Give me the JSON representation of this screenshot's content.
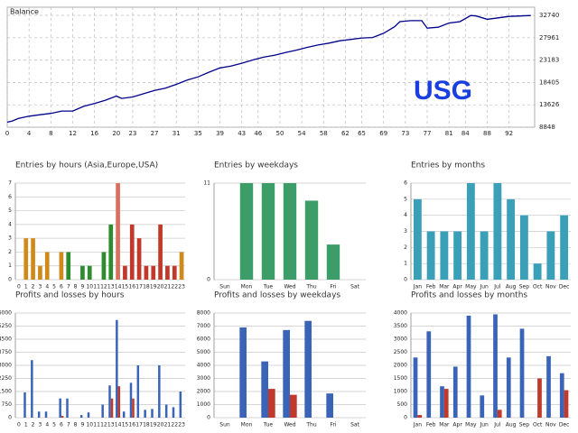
{
  "chart_data": [
    {
      "type": "line",
      "title": "Balance",
      "annotation": "USG",
      "color": "#00008b",
      "x": [
        0,
        1,
        2,
        4,
        6,
        8,
        10,
        12,
        14,
        16,
        18,
        20,
        21,
        23,
        25,
        27,
        29,
        31,
        33,
        35,
        37,
        39,
        41,
        43,
        45,
        47,
        49,
        51,
        53,
        55,
        57,
        59,
        61,
        63,
        65,
        67,
        69,
        71,
        72,
        74,
        76,
        77,
        79,
        81,
        83,
        85,
        86,
        88,
        90,
        92,
        96
      ],
      "values": [
        9900,
        10200,
        10700,
        11200,
        11500,
        11800,
        12300,
        12300,
        13300,
        13900,
        14600,
        15500,
        15000,
        15300,
        16000,
        16700,
        17200,
        18000,
        18900,
        19600,
        20600,
        21500,
        21900,
        22500,
        23200,
        23800,
        24200,
        24800,
        25300,
        25900,
        26400,
        26800,
        27300,
        27600,
        27900,
        28000,
        28900,
        30300,
        31400,
        31600,
        31600,
        30000,
        30200,
        31100,
        31400,
        32700,
        32600,
        31900,
        32200,
        32500,
        32700
      ],
      "xlim": [
        0,
        96.7
      ],
      "xticks": [
        0,
        4,
        8,
        12,
        16,
        20,
        23,
        27,
        31,
        35,
        39,
        43,
        46,
        50,
        54,
        58,
        62,
        65,
        69,
        73,
        77,
        81,
        84,
        88,
        92
      ],
      "ylim": [
        8848,
        34474
      ],
      "yticks": [
        8848,
        13626,
        18405,
        23183,
        27961,
        32740
      ],
      "grid": true
    },
    {
      "type": "bar",
      "title": "Entries by hours (Asia,Europe,USA)",
      "categories": [
        "0",
        "1",
        "2",
        "3",
        "4",
        "5",
        "6",
        "7",
        "8",
        "9",
        "10",
        "11",
        "12",
        "13",
        "14",
        "15",
        "16",
        "17",
        "18",
        "19",
        "20",
        "21",
        "22",
        "23"
      ],
      "values": [
        0,
        3,
        3,
        1,
        2,
        0,
        2,
        2,
        0,
        1,
        1,
        0,
        2,
        4,
        7,
        1,
        4,
        3,
        1,
        1,
        4,
        1,
        1,
        2
      ],
      "colors": [
        "#d08a1c",
        "#d08a1c",
        "#d08a1c",
        "#d08a1c",
        "#d08a1c",
        "#d08a1c",
        "#d08a1c",
        "#2e8b2e",
        "#2e8b2e",
        "#2e8b2e",
        "#2e8b2e",
        "#2e8b2e",
        "#2e8b2e",
        "#2e8b2e",
        "#d9705e",
        "#c0392b",
        "#c0392b",
        "#c0392b",
        "#c0392b",
        "#c0392b",
        "#c0392b",
        "#c0392b",
        "#c0392b",
        "#d08a1c"
      ],
      "ylim": [
        0,
        7
      ],
      "yticks": [
        0,
        1,
        2,
        3,
        4,
        5,
        6,
        7
      ],
      "grid": true
    },
    {
      "type": "bar",
      "title": "Entries by weekdays",
      "categories": [
        "Sun",
        "Mon",
        "Tue",
        "Wed",
        "Thu",
        "Fri",
        "Sat"
      ],
      "values": [
        0,
        11,
        11,
        11,
        9,
        4,
        0
      ],
      "color": "#3c9d68",
      "ylim": [
        0,
        11
      ],
      "yticks": [
        0,
        11
      ],
      "grid": true
    },
    {
      "type": "bar",
      "title": "Entries by months",
      "categories": [
        "Jan",
        "Feb",
        "Mar",
        "Apr",
        "May",
        "Jun",
        "Jul",
        "Aug",
        "Sep",
        "Oct",
        "Nov",
        "Dec"
      ],
      "values": [
        5,
        3,
        3,
        3,
        6,
        3,
        6,
        5,
        4,
        1,
        3,
        4
      ],
      "color": "#3aa0b8",
      "ylim": [
        0,
        6
      ],
      "yticks": [
        0,
        1,
        2,
        3,
        4,
        5,
        6
      ],
      "grid": true
    },
    {
      "type": "bar",
      "title": "Profits and losses by hours",
      "categories": [
        "0",
        "1",
        "2",
        "3",
        "4",
        "5",
        "6",
        "7",
        "8",
        "9",
        "10",
        "11",
        "12",
        "13",
        "14",
        "15",
        "16",
        "17",
        "18",
        "19",
        "20",
        "21",
        "22",
        "23"
      ],
      "series": [
        {
          "color": "#3a64b8",
          "values": [
            0,
            1450,
            3300,
            350,
            350,
            0,
            1100,
            1100,
            0,
            150,
            300,
            0,
            750,
            1850,
            5600,
            350,
            2000,
            3000,
            450,
            500,
            3000,
            750,
            600,
            1500
          ]
        },
        {
          "color": "#c0392b",
          "values": [
            0,
            0,
            0,
            0,
            0,
            0,
            100,
            0,
            0,
            0,
            0,
            0,
            0,
            1100,
            1800,
            0,
            1100,
            0,
            0,
            0,
            0,
            0,
            0,
            0
          ]
        }
      ],
      "ylim": [
        0,
        6000
      ],
      "yticks": [
        0,
        750,
        1500,
        2250,
        3000,
        3750,
        4500,
        5250,
        6000
      ],
      "grid": true
    },
    {
      "type": "bar",
      "title": "Profits and losses by weekdays",
      "categories": [
        "Sun",
        "Mon",
        "Tue",
        "Wed",
        "Thu",
        "Fri",
        "Sat"
      ],
      "series": [
        {
          "color": "#3a64b8",
          "values": [
            0,
            6900,
            4300,
            6700,
            7400,
            1850,
            0
          ]
        },
        {
          "color": "#c0392b",
          "values": [
            0,
            0,
            2200,
            1750,
            0,
            0,
            0
          ]
        }
      ],
      "ylim": [
        0,
        8000
      ],
      "yticks": [
        0,
        1000,
        2000,
        3000,
        4000,
        5000,
        6000,
        7000,
        8000
      ],
      "grid": true
    },
    {
      "type": "bar",
      "title": "Profits and losses by months",
      "categories": [
        "Jan",
        "Feb",
        "Mar",
        "Apr",
        "May",
        "Jun",
        "Jul",
        "Aug",
        "Sep",
        "Oct",
        "Nov",
        "Dec"
      ],
      "series": [
        {
          "color": "#3a64b8",
          "values": [
            2300,
            3300,
            1200,
            1950,
            3900,
            850,
            3950,
            2300,
            3400,
            0,
            2350,
            1700
          ]
        },
        {
          "color": "#c0392b",
          "values": [
            100,
            0,
            1100,
            0,
            0,
            0,
            300,
            0,
            0,
            1500,
            0,
            1050
          ]
        }
      ],
      "ylim": [
        0,
        4000
      ],
      "yticks": [
        0,
        500,
        1000,
        1500,
        2000,
        2500,
        3000,
        3500,
        4000
      ],
      "grid": true
    }
  ]
}
